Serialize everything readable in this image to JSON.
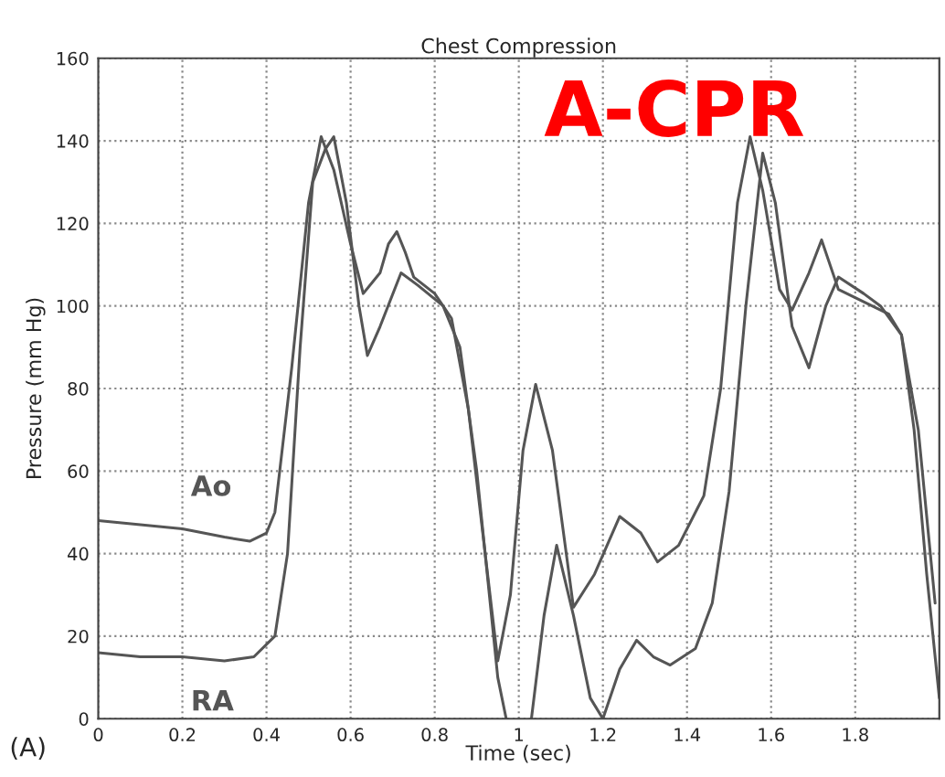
{
  "chart_data": {
    "type": "line",
    "title": "Chest Compression",
    "xlabel": "Time (sec)",
    "ylabel": "Pressure (mm Hg)",
    "annotations": [
      "A-CPR",
      "(A)"
    ],
    "series": [
      {
        "name": "Ao",
        "color": "#555555",
        "x": [
          0,
          0.1,
          0.2,
          0.3,
          0.36,
          0.4,
          0.42,
          0.46,
          0.5,
          0.53,
          0.56,
          0.6,
          0.63,
          0.67,
          0.69,
          0.71,
          0.73,
          0.75,
          0.8,
          0.84,
          0.88,
          0.92,
          0.95,
          0.98,
          1.01,
          1.04,
          1.08,
          1.13,
          1.18,
          1.24,
          1.29,
          1.33,
          1.38,
          1.44,
          1.48,
          1.52,
          1.55,
          1.58,
          1.62,
          1.65,
          1.69,
          1.72,
          1.76,
          1.82,
          1.88,
          1.91,
          1.95,
          1.99
        ],
        "values": [
          48,
          47,
          46,
          44,
          43,
          45,
          50,
          85,
          125,
          141,
          133,
          115,
          103,
          108,
          115,
          118,
          113,
          107,
          103,
          97,
          75,
          40,
          14,
          30,
          65,
          81,
          65,
          27,
          35,
          49,
          45,
          38,
          42,
          54,
          80,
          125,
          141,
          128,
          104,
          99,
          108,
          116,
          104,
          101,
          98,
          93,
          70,
          28
        ]
      },
      {
        "name": "RA",
        "color": "#555555",
        "x": [
          0,
          0.1,
          0.2,
          0.3,
          0.37,
          0.42,
          0.45,
          0.48,
          0.51,
          0.54,
          0.56,
          0.59,
          0.62,
          0.64,
          0.67,
          0.72,
          0.76,
          0.82,
          0.86,
          0.9,
          0.93,
          0.95,
          0.97,
          1.0,
          1.03,
          1.06,
          1.09,
          1.13,
          1.17,
          1.2,
          1.24,
          1.28,
          1.32,
          1.36,
          1.42,
          1.46,
          1.5,
          1.54,
          1.58,
          1.61,
          1.65,
          1.69,
          1.73,
          1.76,
          1.82,
          1.86,
          1.91,
          1.94,
          1.97,
          2.0
        ],
        "values": [
          16,
          15,
          15,
          14,
          15,
          20,
          40,
          90,
          130,
          138,
          141,
          125,
          100,
          88,
          95,
          108,
          105,
          100,
          90,
          60,
          30,
          10,
          0,
          null,
          0,
          25,
          42,
          25,
          5,
          0,
          12,
          19,
          15,
          13,
          17,
          28,
          55,
          100,
          137,
          125,
          95,
          85,
          100,
          107,
          103,
          100,
          93,
          70,
          35,
          5
        ]
      }
    ],
    "xlim": [
      0,
      2
    ],
    "xticks": [
      0,
      0.2,
      0.4,
      0.6,
      0.8,
      1,
      1.2,
      1.4,
      1.6,
      1.8
    ],
    "ylim": [
      0,
      160
    ],
    "yticks": [
      0,
      20,
      40,
      60,
      80,
      100,
      120,
      140,
      160
    ],
    "grid": true,
    "legend": false,
    "line_style": "solid",
    "marker": "none"
  }
}
